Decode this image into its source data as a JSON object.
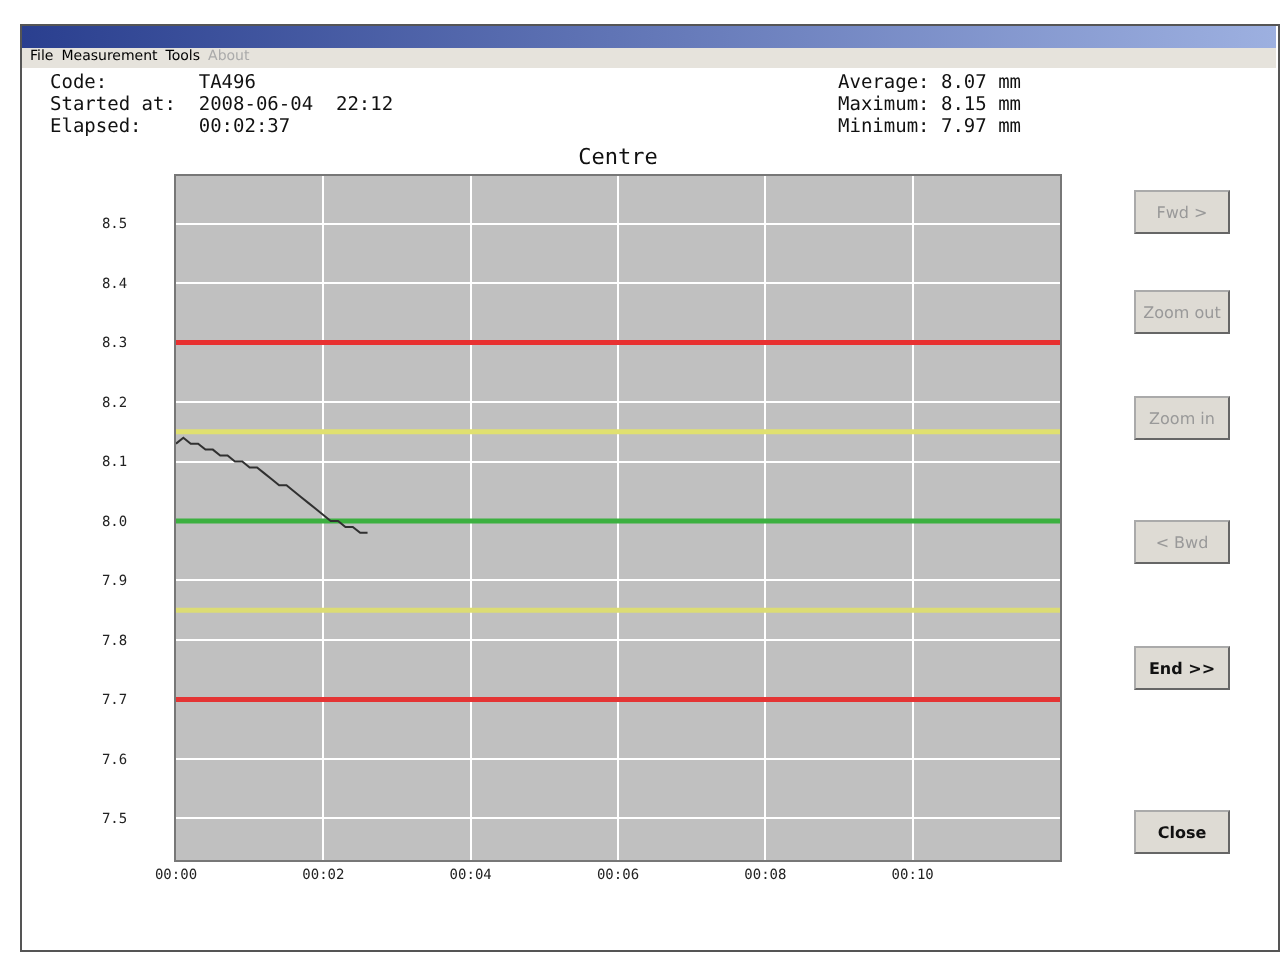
{
  "chart_data": {
    "type": "line",
    "title": "Centre",
    "annotations": [
      "Code:        TA496",
      "Started at:  2008-06-04  22:12",
      "Elapsed:     00:02:37",
      "Average: 8.07 mm",
      "Maximum: 8.15 mm",
      "Minimum: 7.97 mm",
      "File",
      "Measurement",
      "Tools",
      "About",
      "Fwd >",
      "Zoom out",
      "Zoom in",
      "< Bwd",
      "End >>",
      "Close"
    ],
    "x": [
      0,
      0.1,
      0.2,
      0.3,
      0.4,
      0.5,
      0.6,
      0.7,
      0.8,
      0.9,
      1.0,
      1.1,
      1.2,
      1.3,
      1.4,
      1.5,
      1.6,
      1.7,
      1.8,
      1.9,
      2.0,
      2.1,
      2.2,
      2.3,
      2.4,
      2.5,
      2.6
    ],
    "series": [
      {
        "color": "#303030",
        "values": [
          8.13,
          8.14,
          8.13,
          8.13,
          8.12,
          8.12,
          8.11,
          8.11,
          8.1,
          8.1,
          8.09,
          8.09,
          8.08,
          8.07,
          8.06,
          8.06,
          8.05,
          8.04,
          8.03,
          8.02,
          8.01,
          8.0,
          8.0,
          7.99,
          7.99,
          7.98,
          7.98
        ]
      }
    ],
    "xlim": [
      0,
      12
    ],
    "xticks": [
      {
        "value": 0,
        "label": "00:00"
      },
      {
        "value": 2,
        "label": "00:02"
      },
      {
        "value": 4,
        "label": "00:04"
      },
      {
        "value": 6,
        "label": "00:06"
      },
      {
        "value": 8,
        "label": "00:08"
      },
      {
        "value": 10,
        "label": "00:10"
      }
    ],
    "ylim": [
      7.43,
      8.58
    ],
    "yticks": [
      7.5,
      7.6,
      7.7,
      7.8,
      7.9,
      {
        "value": 8,
        "label": "8.0"
      },
      8.1,
      8.2,
      8.3,
      8.4,
      8.5
    ],
    "grid": true,
    "marker": "none",
    "line_style": "solid",
    "ref_lines": [
      {
        "axis": "y",
        "value": 8.3,
        "color": "#e83030"
      },
      {
        "axis": "y",
        "value": 7.7,
        "color": "#e43434"
      },
      {
        "axis": "y",
        "value": 8.0,
        "color": "#3cb040"
      },
      {
        "axis": "y",
        "value": 8.15,
        "color": "#e0e070"
      },
      {
        "axis": "y",
        "value": 7.85,
        "color": "#dcdc74"
      }
    ]
  }
}
